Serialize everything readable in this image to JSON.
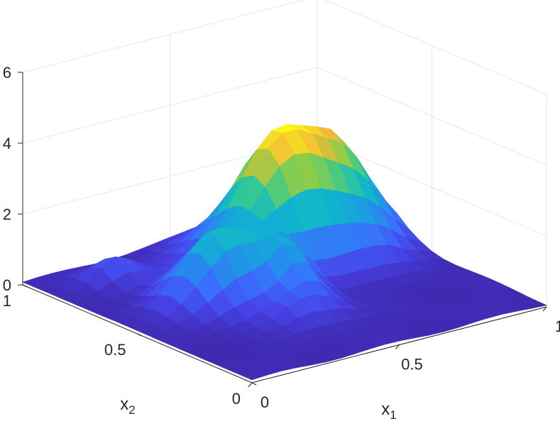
{
  "chart_data": {
    "type": "surface",
    "title": "",
    "xlabel": "x",
    "xlabel_sub": "1",
    "ylabel": "x",
    "ylabel_sub": "2",
    "zlabel": "",
    "xlim": [
      0,
      1
    ],
    "ylim": [
      0,
      1
    ],
    "zlim": [
      0,
      6
    ],
    "x_ticks": [
      "0",
      "0.5",
      "1"
    ],
    "y_ticks": [
      "0",
      "0.5",
      "1"
    ],
    "z_ticks": [
      "0",
      "2",
      "4",
      "6"
    ],
    "grid": true,
    "colormap": "parula",
    "grid_resolution": 21,
    "surface_model": {
      "description_note": "",
      "base": 0.08,
      "peaks": [
        {
          "x1": 0.72,
          "x2": 0.74,
          "height": 3.2,
          "sx": 0.16,
          "sy": 0.13
        },
        {
          "x1": 0.88,
          "x2": 0.78,
          "height": 1.1,
          "sx": 0.07,
          "sy": 0.12
        },
        {
          "x1": 0.32,
          "x2": 0.55,
          "height": 2.0,
          "sx": 0.1,
          "sy": 0.09
        },
        {
          "x1": 0.48,
          "x2": 0.44,
          "height": 1.1,
          "sx": 0.05,
          "sy": 0.07
        },
        {
          "x1": 0.58,
          "x2": 0.66,
          "height": 1.0,
          "sx": 0.11,
          "sy": 0.1
        },
        {
          "x1": 0.2,
          "x2": 0.86,
          "height": 0.7,
          "sx": 0.06,
          "sy": 0.05
        },
        {
          "x1": 0.42,
          "x2": 0.3,
          "height": 0.6,
          "sx": 0.08,
          "sy": 0.06
        }
      ]
    }
  }
}
